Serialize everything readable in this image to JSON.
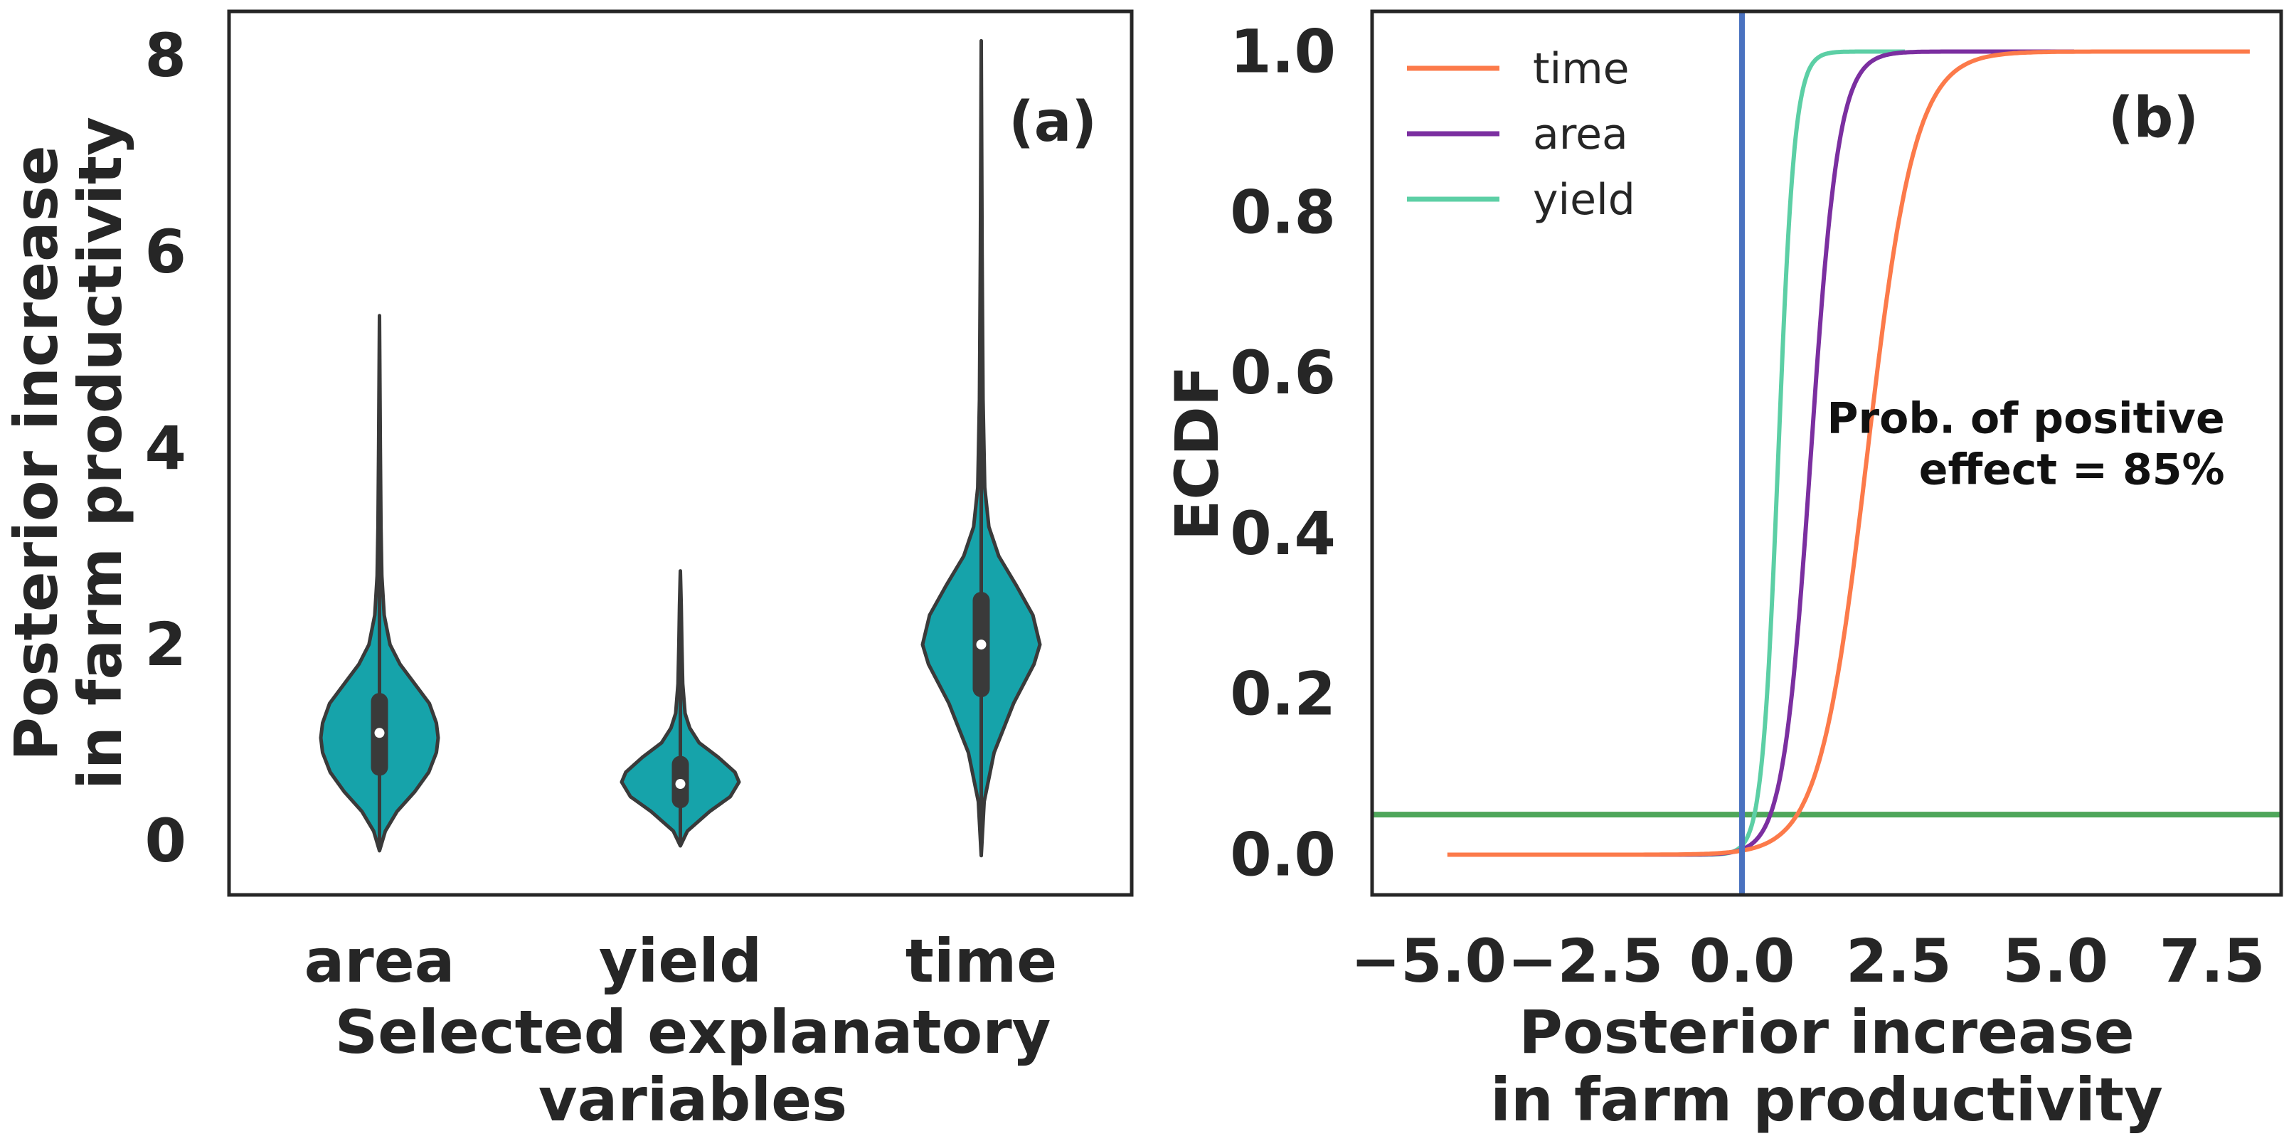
{
  "colors": {
    "violin_fill": "#16a3aa",
    "violin_edge": "#3a3a3a",
    "axis": "#262626",
    "time": "#fc7a4a",
    "area": "#7b2fa0",
    "yield": "#5ccfa5",
    "vline": "#4a72c0",
    "hline": "#4ea65a"
  },
  "chart_data": [
    {
      "type": "violin",
      "panel_label": "(a)",
      "title": "",
      "xlabel": "Selected explanatory variables",
      "ylabel": "Posterior increase in farm productivity",
      "ylabel_lines": [
        "Posterior increase",
        "in farm productivity"
      ],
      "xlabel_lines": [
        "Selected explanatory",
        "variables"
      ],
      "categories": [
        "area",
        "yield",
        "time"
      ],
      "ylim": [
        -0.55,
        8.45
      ],
      "yticks": [
        0,
        2,
        4,
        6,
        8
      ],
      "ytick_labels": [
        "0",
        "2",
        "4",
        "6",
        "8"
      ],
      "violins": [
        {
          "name": "area",
          "min": -0.1,
          "max": 5.35,
          "q1": 0.75,
          "median": 1.1,
          "q3": 1.42,
          "profile": [
            [
              -0.1,
              0.0
            ],
            [
              0.1,
              0.1
            ],
            [
              0.3,
              0.3
            ],
            [
              0.5,
              0.6
            ],
            [
              0.7,
              0.84
            ],
            [
              0.9,
              0.97
            ],
            [
              1.05,
              1.0
            ],
            [
              1.2,
              0.97
            ],
            [
              1.4,
              0.85
            ],
            [
              1.6,
              0.6
            ],
            [
              1.8,
              0.35
            ],
            [
              2.0,
              0.18
            ],
            [
              2.3,
              0.08
            ],
            [
              2.7,
              0.04
            ],
            [
              3.2,
              0.025
            ],
            [
              4.0,
              0.015
            ],
            [
              5.35,
              0.0
            ]
          ]
        },
        {
          "name": "yield",
          "min": -0.05,
          "max": 2.75,
          "q1": 0.42,
          "median": 0.58,
          "q3": 0.78,
          "profile": [
            [
              -0.05,
              0.0
            ],
            [
              0.1,
              0.12
            ],
            [
              0.3,
              0.5
            ],
            [
              0.45,
              0.85
            ],
            [
              0.6,
              1.0
            ],
            [
              0.7,
              0.93
            ],
            [
              0.85,
              0.65
            ],
            [
              1.0,
              0.32
            ],
            [
              1.15,
              0.16
            ],
            [
              1.3,
              0.08
            ],
            [
              1.6,
              0.04
            ],
            [
              2.0,
              0.025
            ],
            [
              2.4,
              0.015
            ],
            [
              2.75,
              0.0
            ]
          ]
        },
        {
          "name": "time",
          "min": -0.15,
          "max": 8.15,
          "q1": 1.55,
          "median": 2.0,
          "q3": 2.45,
          "profile": [
            [
              -0.15,
              0.0
            ],
            [
              0.4,
              0.05
            ],
            [
              0.9,
              0.22
            ],
            [
              1.4,
              0.55
            ],
            [
              1.8,
              0.9
            ],
            [
              2.0,
              1.0
            ],
            [
              2.3,
              0.88
            ],
            [
              2.6,
              0.6
            ],
            [
              2.9,
              0.3
            ],
            [
              3.2,
              0.13
            ],
            [
              3.6,
              0.06
            ],
            [
              4.5,
              0.03
            ],
            [
              6.0,
              0.015
            ],
            [
              8.15,
              0.0
            ]
          ]
        }
      ]
    },
    {
      "type": "line",
      "panel_label": "(b)",
      "title": "",
      "xlabel": "Posterior increase in farm productivity",
      "xlabel_lines": [
        "Posterior increase",
        "in farm productivity"
      ],
      "ylabel": "ECDF",
      "xlim": [
        -5.9,
        8.6
      ],
      "ylim": [
        -0.05,
        1.05
      ],
      "xticks": [
        -5.0,
        -2.5,
        0.0,
        2.5,
        5.0,
        7.5
      ],
      "xtick_labels": [
        "−5.0",
        "−2.5",
        "0.0",
        "2.5",
        "5.0",
        "7.5"
      ],
      "yticks": [
        0.0,
        0.2,
        0.4,
        0.6,
        0.8,
        1.0
      ],
      "ytick_labels": [
        "0.0",
        "0.2",
        "0.4",
        "0.6",
        "0.8",
        "1.0"
      ],
      "legend": {
        "placement": "top-left",
        "entries": [
          "time",
          "area",
          "yield"
        ]
      },
      "vline_x": 0.0,
      "hline_y": 0.05,
      "annotation": {
        "lines": [
          "Prob. of positive",
          "effect = 85%"
        ],
        "anchor_x": 7.7,
        "anchor_y": 0.48
      },
      "series": [
        {
          "name": "time",
          "x_min": -4.7,
          "x_max": 8.1,
          "center": 2.0,
          "scale": 0.38
        },
        {
          "name": "area",
          "x_min": -3.3,
          "x_max": 5.3,
          "center": 1.1,
          "scale": 0.22
        },
        {
          "name": "yield",
          "x_min": -1.8,
          "x_max": 2.6,
          "center": 0.58,
          "scale": 0.13
        }
      ]
    }
  ]
}
